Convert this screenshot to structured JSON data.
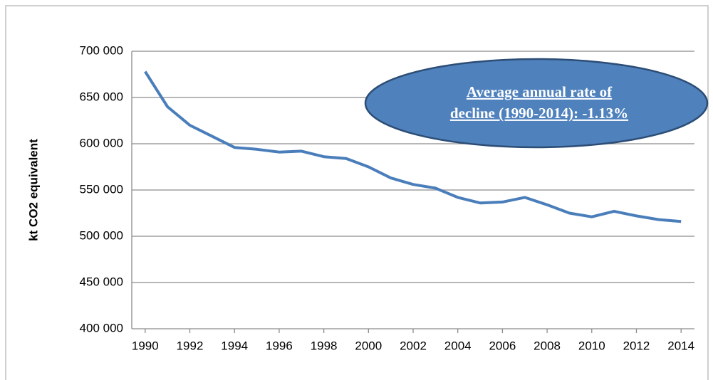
{
  "chart_data": {
    "type": "line",
    "y_label": "kt CO2 equivalent",
    "annotation": [
      "Average annual rate of",
      "decline (1990-2014): -1.13%"
    ],
    "x": [
      1990,
      1991,
      1992,
      1993,
      1994,
      1995,
      1996,
      1997,
      1998,
      1999,
      2000,
      2001,
      2002,
      2003,
      2004,
      2005,
      2006,
      2007,
      2008,
      2009,
      2010,
      2011,
      2012,
      2013,
      2014
    ],
    "values": [
      678000,
      640000,
      620000,
      608000,
      596000,
      594000,
      591000,
      592000,
      586000,
      584000,
      575000,
      563000,
      556000,
      552000,
      542000,
      536000,
      537000,
      542000,
      534000,
      525000,
      521000,
      527000,
      522000,
      518000,
      516000
    ],
    "color": "#4a7ebb",
    "xlim": [
      1989.4,
      2014.6
    ],
    "xticks": [
      1990,
      1992,
      1994,
      1996,
      1998,
      2000,
      2002,
      2004,
      2006,
      2008,
      2010,
      2012,
      2014
    ],
    "ylim": [
      400000,
      700000
    ],
    "yticks": [
      {
        "value": 400000,
        "label": "400 000"
      },
      {
        "value": 450000,
        "label": "450 000"
      },
      {
        "value": 500000,
        "label": "500 000"
      },
      {
        "value": 550000,
        "label": "550 000"
      },
      {
        "value": 600000,
        "label": "600 000"
      },
      {
        "value": 650000,
        "label": "650 000"
      },
      {
        "value": 700000,
        "label": "700 000"
      }
    ],
    "grid": true
  }
}
